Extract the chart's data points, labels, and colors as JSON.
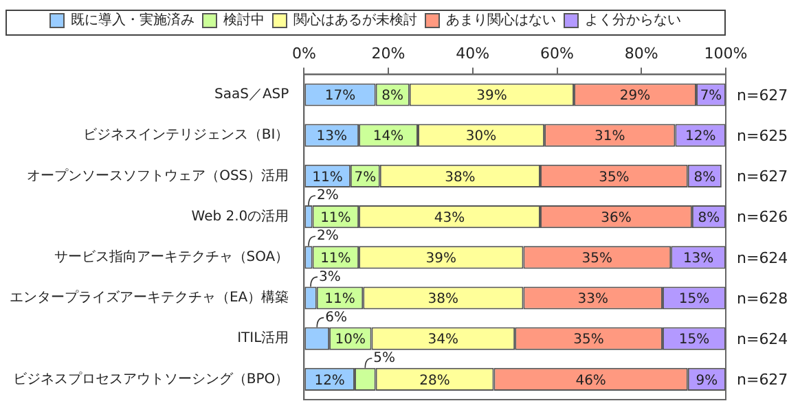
{
  "chart_data": {
    "type": "bar",
    "orientation": "horizontal",
    "stacked": true,
    "legend": "top",
    "grid": false,
    "categories": [
      "SaaS／ASP",
      "ビジネスインテリジェンス（BI）",
      "オープンソースソフトウェア（OSS）活用",
      "Web 2.0の活用",
      "サービス指向アーキテクチャ（SOA）",
      "エンタープライズアーキテクチャ（EA）構築",
      "ITIL活用",
      "ビジネスプロセスアウトソーシング（BPO）"
    ],
    "xlim": [
      0,
      100
    ],
    "xticks": [
      {
        "value": 0,
        "label": "0%"
      },
      {
        "value": 20,
        "label": "20%"
      },
      {
        "value": 40,
        "label": "40%"
      },
      {
        "value": 60,
        "label": "60%"
      },
      {
        "value": 80,
        "label": "80%"
      },
      {
        "value": 100,
        "label": "100%"
      }
    ],
    "series": [
      {
        "name": "既に導入・実施済み",
        "color": "#99ccff",
        "values": [
          17,
          13,
          11,
          2,
          2,
          3,
          6,
          12
        ],
        "value_labels": [
          "17%",
          "13%",
          "11%",
          "2%",
          "2%",
          "3%",
          "6%",
          "12%"
        ]
      },
      {
        "name": "検討中",
        "color": "#ccff99",
        "values": [
          8,
          14,
          7,
          11,
          11,
          11,
          10,
          5
        ],
        "value_labels": [
          "8%",
          "14%",
          "7%",
          "11%",
          "11%",
          "11%",
          "10%",
          "5%"
        ]
      },
      {
        "name": "関心はあるが未検討",
        "color": "#ffff99",
        "values": [
          39,
          30,
          38,
          43,
          39,
          38,
          34,
          28
        ],
        "value_labels": [
          "39%",
          "30%",
          "38%",
          "43%",
          "39%",
          "38%",
          "34%",
          "28%"
        ]
      },
      {
        "name": "あまり関心はない",
        "color": "#ff9980",
        "values": [
          29,
          31,
          35,
          36,
          35,
          33,
          35,
          46
        ],
        "value_labels": [
          "29%",
          "31%",
          "35%",
          "36%",
          "35%",
          "33%",
          "35%",
          "46%"
        ]
      },
      {
        "name": "よく分からない",
        "color": "#b399ff",
        "values": [
          7,
          12,
          8,
          8,
          13,
          15,
          15,
          9
        ],
        "value_labels": [
          "7%",
          "12%",
          "8%",
          "8%",
          "13%",
          "15%",
          "15%",
          "9%"
        ]
      }
    ],
    "annotations": [
      "n=627",
      "n=625",
      "n=627",
      "n=626",
      "n=624",
      "n=628",
      "n=624",
      "n=627"
    ]
  }
}
